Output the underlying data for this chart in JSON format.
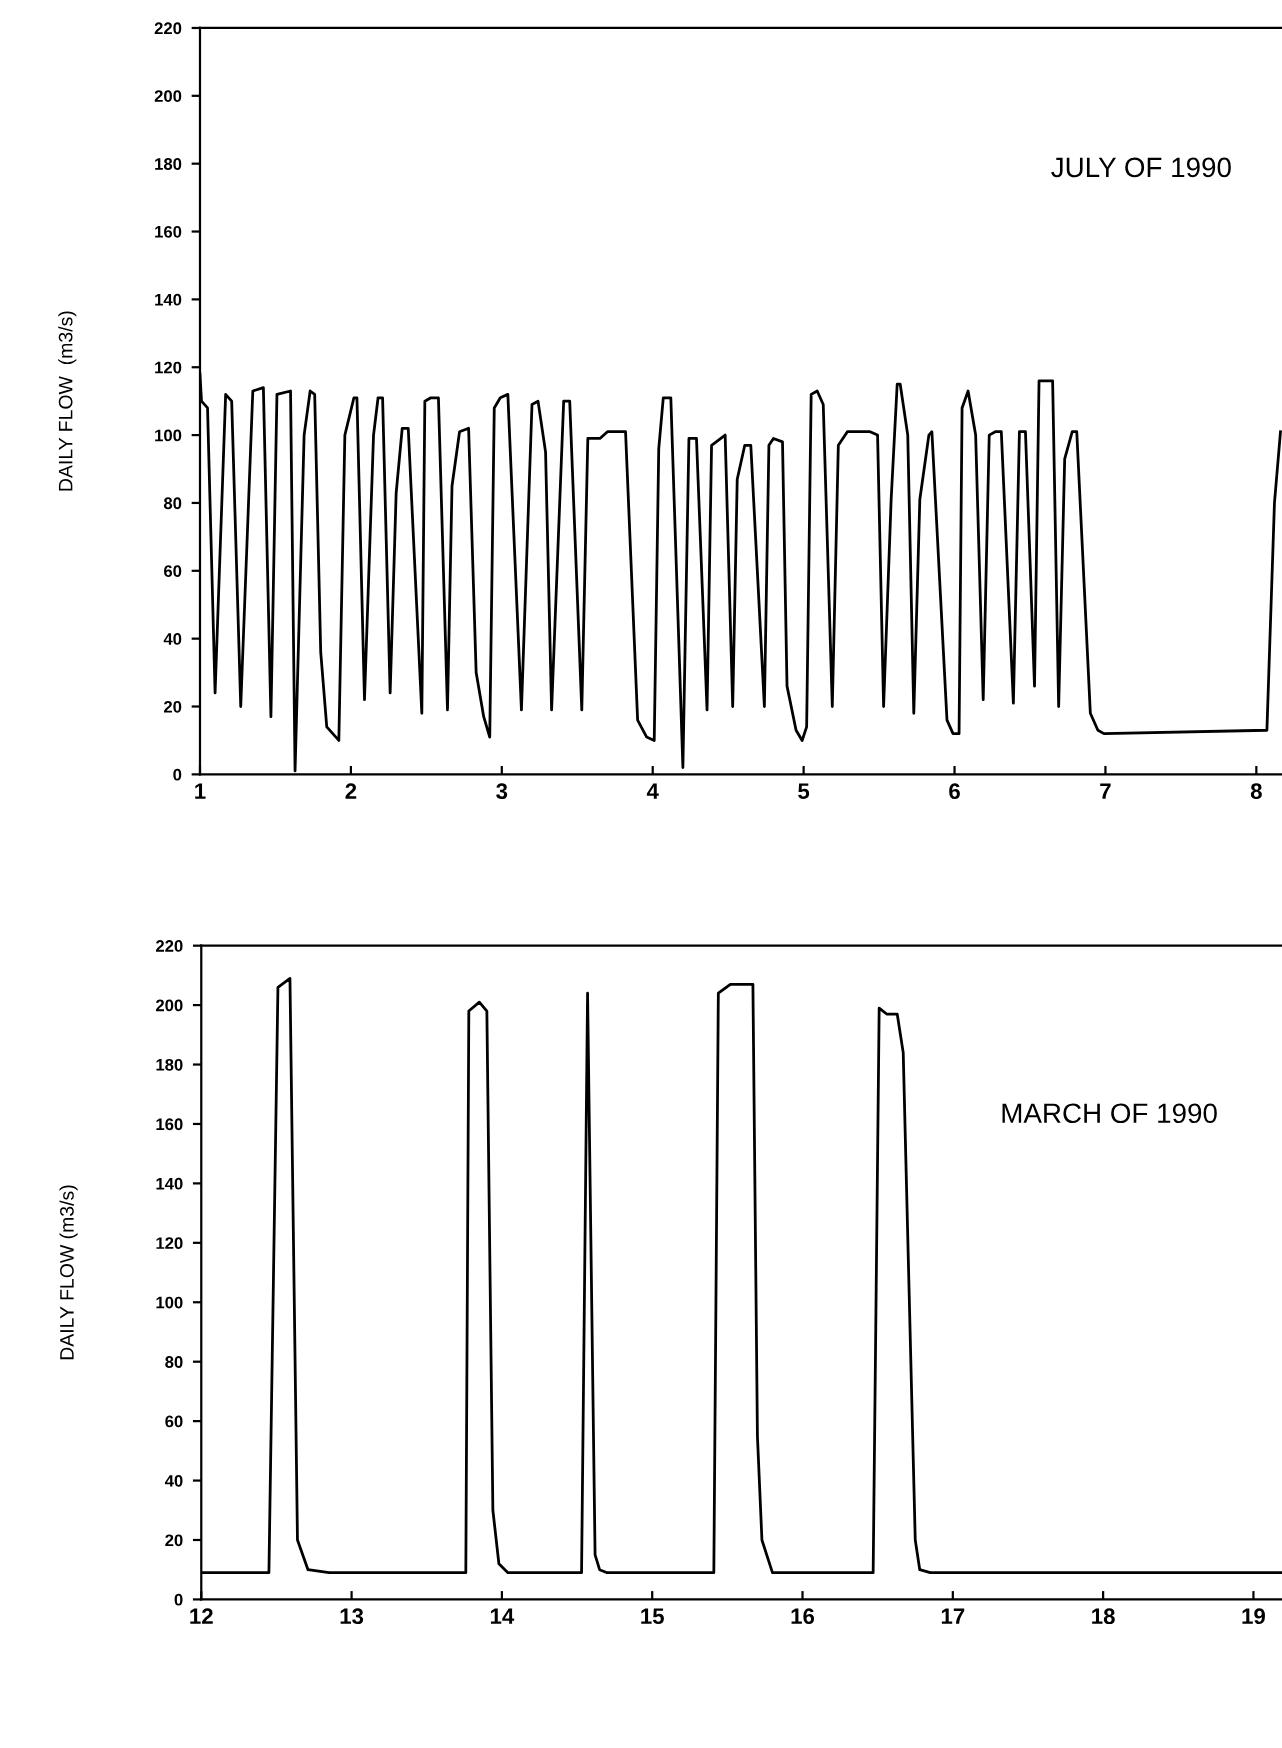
{
  "chart_data": [
    {
      "type": "line",
      "ylabel": "DAILY FLOW  (m3/s)",
      "annotations": [
        "JULY OF 1990"
      ],
      "xlim": [
        1,
        8.17
      ],
      "ylim": [
        0,
        220
      ],
      "xticks": [
        1,
        2,
        3,
        4,
        5,
        6,
        7,
        8
      ],
      "yticks": [
        0,
        20,
        40,
        60,
        80,
        100,
        120,
        140,
        160,
        180,
        200,
        220
      ],
      "grid": false,
      "marker": "none",
      "line_style": "solid",
      "series": [
        {
          "color": "#000000",
          "x": [
            1.0,
            1.01,
            1.05,
            1.1,
            1.17,
            1.21,
            1.27,
            1.35,
            1.42,
            1.47,
            1.51,
            1.6,
            1.63,
            1.69,
            1.73,
            1.76,
            1.8,
            1.84,
            1.92,
            1.96,
            2.02,
            2.04,
            2.09,
            2.15,
            2.18,
            2.21,
            2.26,
            2.3,
            2.34,
            2.38,
            2.47,
            2.49,
            2.53,
            2.58,
            2.64,
            2.67,
            2.72,
            2.78,
            2.83,
            2.88,
            2.92,
            2.95,
            2.99,
            3.04,
            3.13,
            3.2,
            3.24,
            3.29,
            3.33,
            3.41,
            3.45,
            3.53,
            3.57,
            3.65,
            3.7,
            3.82,
            3.9,
            3.96,
            4.01,
            4.04,
            4.07,
            4.12,
            4.2,
            4.24,
            4.29,
            4.36,
            4.39,
            4.48,
            4.53,
            4.56,
            4.61,
            4.65,
            4.74,
            4.77,
            4.8,
            4.86,
            4.89,
            4.95,
            4.99,
            5.02,
            5.05,
            5.09,
            5.13,
            5.19,
            5.23,
            5.29,
            5.44,
            5.49,
            5.53,
            5.58,
            5.62,
            5.64,
            5.69,
            5.73,
            5.77,
            5.83,
            5.85,
            5.95,
            5.99,
            6.03,
            6.05,
            6.09,
            6.14,
            6.19,
            6.23,
            6.27,
            6.31,
            6.39,
            6.43,
            6.47,
            6.53,
            6.56,
            6.65,
            6.69,
            6.73,
            6.78,
            6.81,
            6.9,
            6.95,
            6.99,
            8.07,
            8.12,
            8.16
          ],
          "values": [
            118,
            110,
            108,
            24,
            112,
            110,
            20,
            113,
            114,
            17,
            112,
            113,
            1,
            100,
            113,
            112,
            36,
            14,
            10,
            100,
            111,
            111,
            22,
            100,
            111,
            111,
            24,
            83,
            102,
            102,
            18,
            110,
            111,
            111,
            19,
            85,
            101,
            102,
            30,
            17,
            11,
            108,
            111,
            112,
            19,
            109,
            110,
            95,
            19,
            110,
            110,
            19,
            99,
            99,
            101,
            101,
            16,
            11,
            10,
            96,
            111,
            111,
            2,
            99,
            99,
            19,
            97,
            100,
            20,
            87,
            97,
            97,
            20,
            97,
            99,
            98,
            26,
            13,
            10,
            14,
            112,
            113,
            109,
            20,
            97,
            101,
            101,
            100,
            20,
            81,
            115,
            115,
            100,
            18,
            81,
            100,
            101,
            16,
            12,
            12,
            108,
            113,
            100,
            22,
            100,
            101,
            101,
            21,
            101,
            101,
            26,
            116,
            116,
            20,
            93,
            101,
            101,
            18,
            13,
            12,
            13,
            80,
            101
          ]
        }
      ]
    },
    {
      "type": "line",
      "ylabel": "DAILY FLOW (m3/s)",
      "annotations": [
        "MARCH OF 1990"
      ],
      "xlim": [
        12,
        19.19
      ],
      "ylim": [
        0,
        220
      ],
      "xticks": [
        12,
        13,
        14,
        15,
        16,
        17,
        18,
        19
      ],
      "yticks": [
        0,
        20,
        40,
        60,
        80,
        100,
        120,
        140,
        160,
        180,
        200,
        220
      ],
      "grid": false,
      "marker": "none",
      "line_style": "solid",
      "series": [
        {
          "color": "#000000",
          "x": [
            12.0,
            12.45,
            12.51,
            12.59,
            12.64,
            12.71,
            12.85,
            13.76,
            13.78,
            13.85,
            13.9,
            13.94,
            13.98,
            14.04,
            14.53,
            14.57,
            14.62,
            14.65,
            14.7,
            15.41,
            15.44,
            15.52,
            15.67,
            15.7,
            15.73,
            15.8,
            16.47,
            16.51,
            16.56,
            16.63,
            16.67,
            16.75,
            16.78,
            16.85,
            19.19
          ],
          "values": [
            9,
            9,
            206,
            209,
            20,
            10,
            9,
            9,
            198,
            201,
            198,
            30,
            12,
            9,
            9,
            204,
            15,
            10,
            9,
            9,
            204,
            207,
            207,
            55,
            20,
            9,
            9,
            199,
            197,
            197,
            184,
            20,
            10,
            9,
            9
          ]
        }
      ]
    }
  ]
}
